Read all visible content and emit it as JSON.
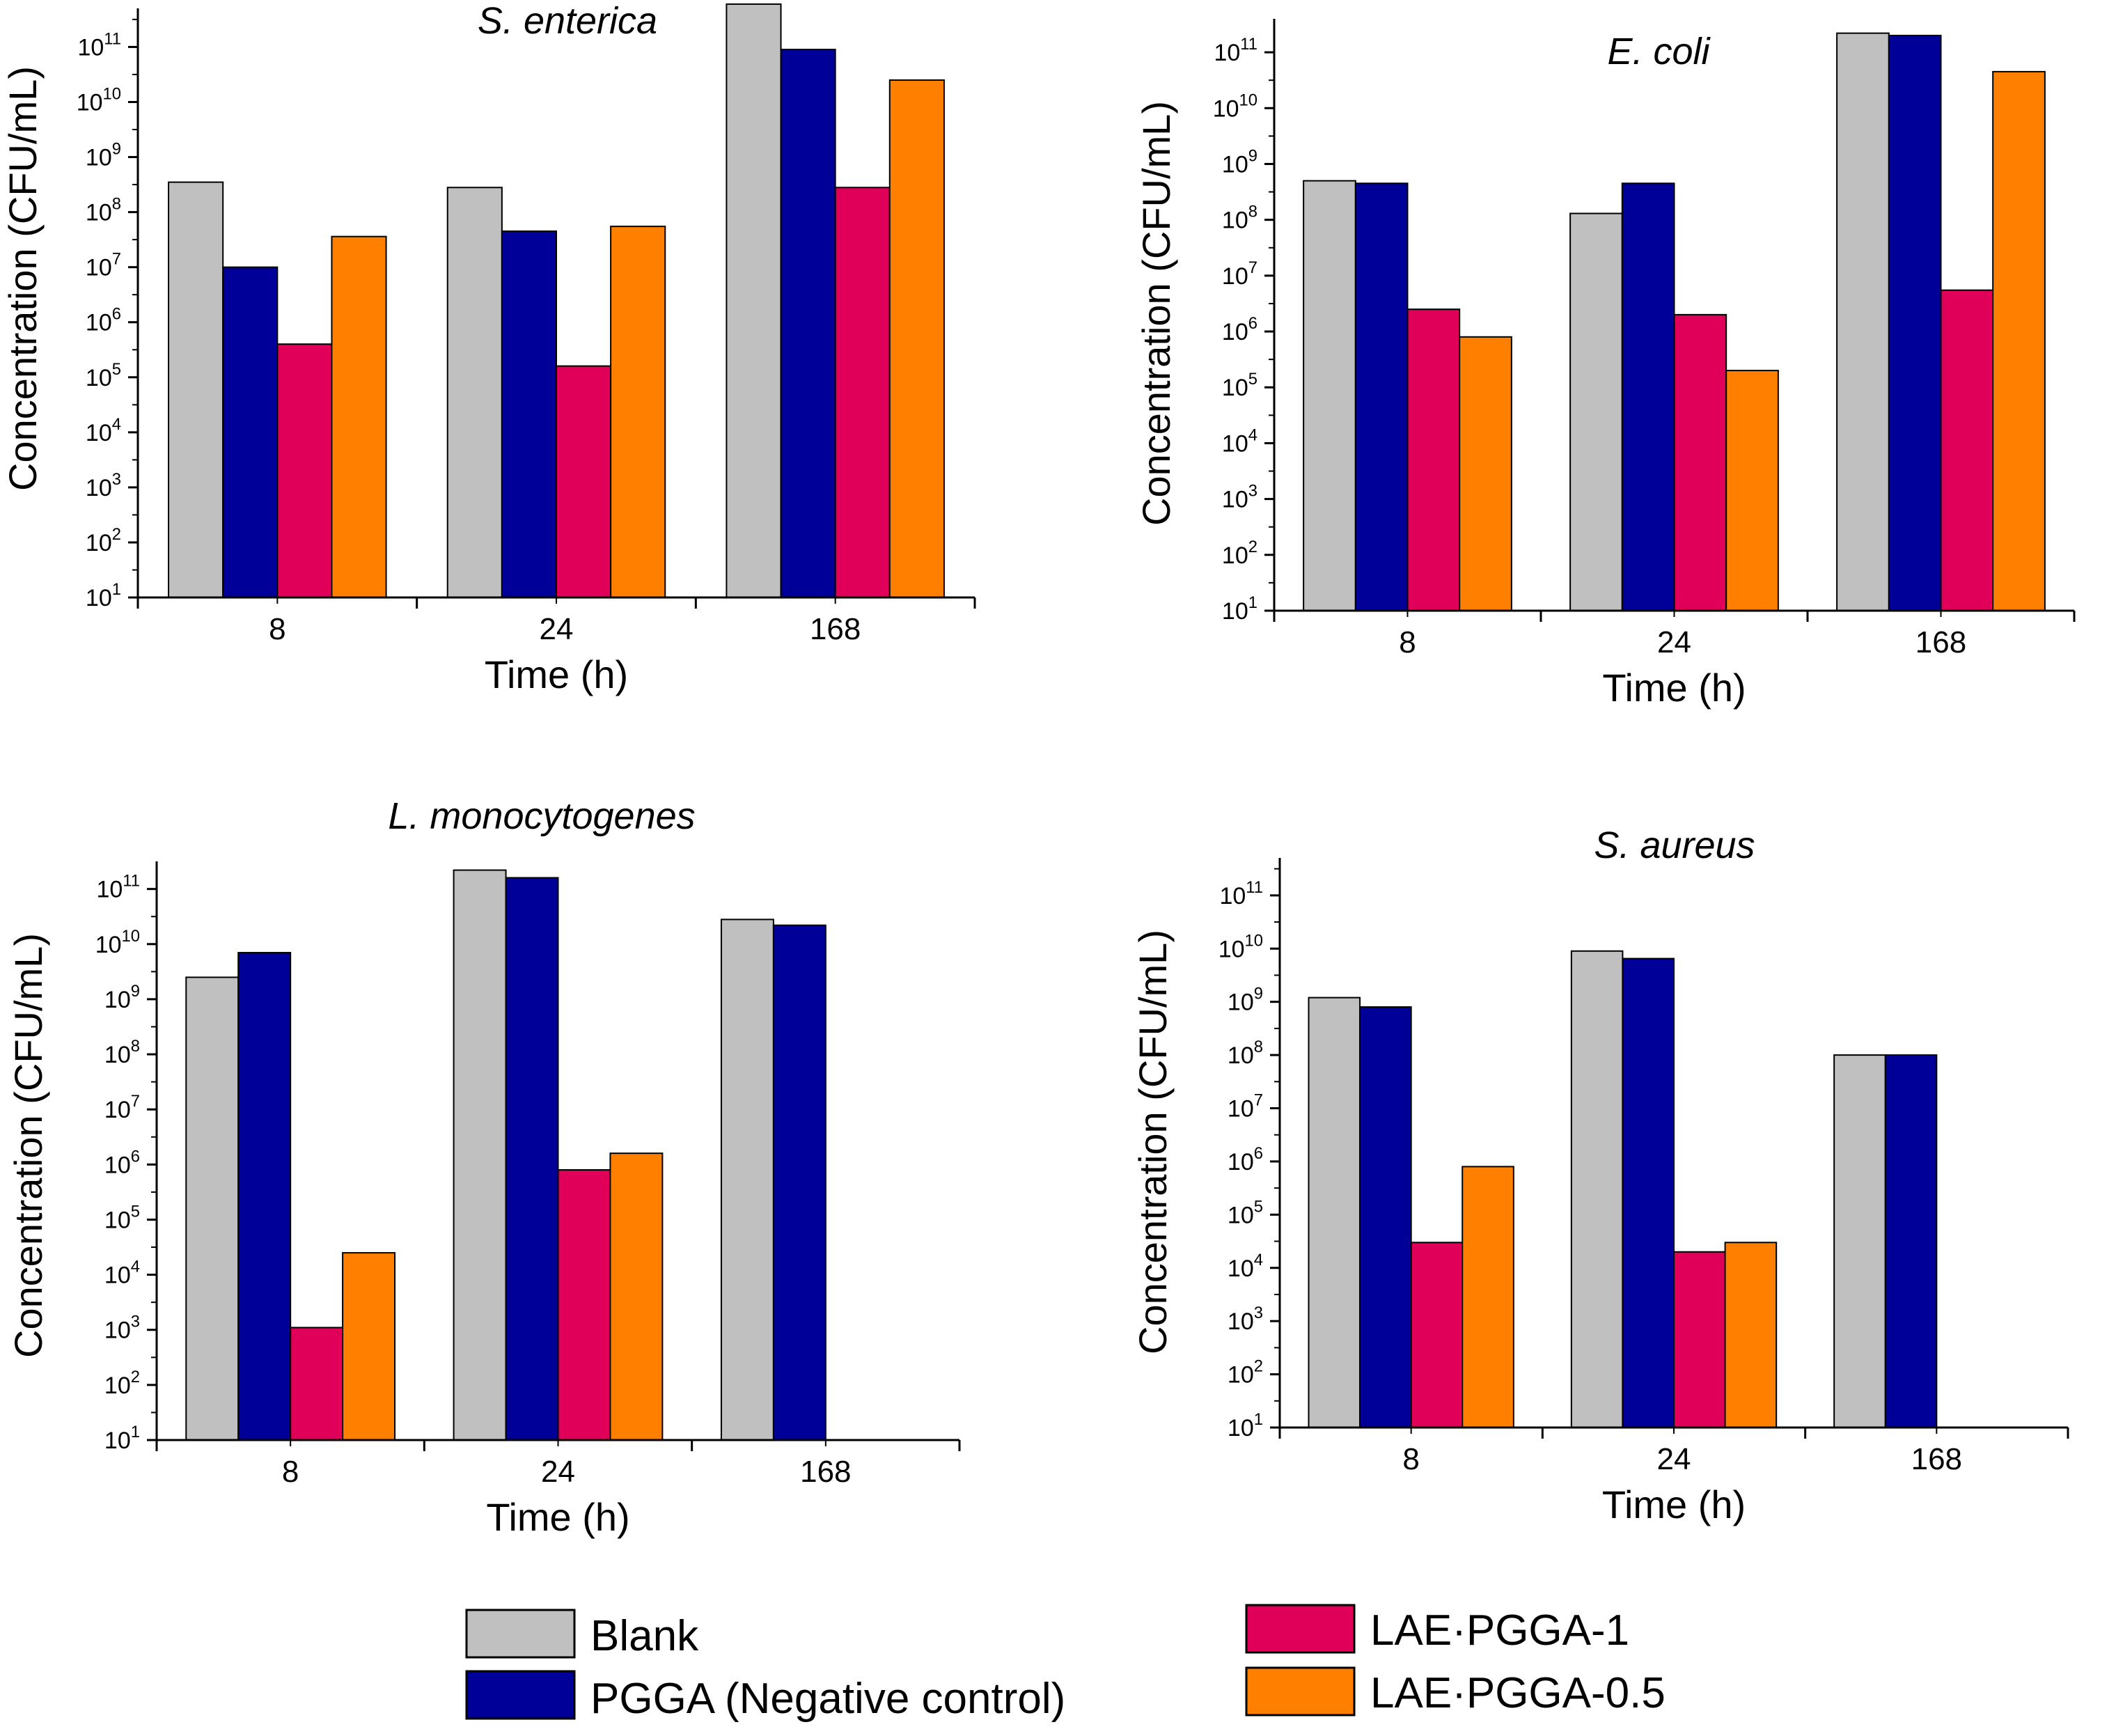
{
  "series": [
    {
      "name": "Blank",
      "color": "#c0c0c0"
    },
    {
      "name": "PGGA (Negative control)",
      "color": "#000099"
    },
    {
      "name": "LAE·PGGA-1",
      "color": "#e0005a"
    },
    {
      "name": "LAE·PGGA-0.5",
      "color": "#ff8000"
    }
  ],
  "chart_data": [
    {
      "type": "bar",
      "title": "S. enterica",
      "xlabel": "Time (h)",
      "ylabel": "Concentration (CFU/mL)",
      "yscale": "log",
      "ylim_exp": [
        1,
        11.6
      ],
      "ytick_exponents": [
        1,
        2,
        3,
        4,
        5,
        6,
        7,
        8,
        9,
        10,
        11
      ],
      "categories": [
        "8",
        "24",
        "168"
      ],
      "series": [
        {
          "name": "Blank",
          "values": [
            350000000.0,
            280000000.0,
            600000000000.0
          ]
        },
        {
          "name": "PGGA (Negative control)",
          "values": [
            10000000.0,
            45000000.0,
            90000000000.0
          ]
        },
        {
          "name": "LAE·PGGA-1",
          "values": [
            400000.0,
            160000.0,
            280000000.0
          ]
        },
        {
          "name": "LAE·PGGA-0.5",
          "values": [
            36000000.0,
            55000000.0,
            25000000000.0
          ]
        }
      ]
    },
    {
      "type": "bar",
      "title": "E. coli",
      "xlabel": "Time (h)",
      "ylabel": "Concentration (CFU/mL)",
      "yscale": "log",
      "ylim_exp": [
        1,
        11.5
      ],
      "ytick_exponents": [
        1,
        2,
        3,
        4,
        5,
        6,
        7,
        8,
        9,
        10,
        11
      ],
      "categories": [
        "8",
        "24",
        "168"
      ],
      "series": [
        {
          "name": "Blank",
          "values": [
            500000000.0,
            130000000.0,
            220000000000.0
          ]
        },
        {
          "name": "PGGA (Negative control)",
          "values": [
            450000000.0,
            450000000.0,
            200000000000.0
          ]
        },
        {
          "name": "LAE·PGGA-1",
          "values": [
            2500000.0,
            2000000.0,
            5500000.0
          ]
        },
        {
          "name": "LAE·PGGA-0.5",
          "values": [
            800000.0,
            200000.0,
            45000000000.0
          ]
        }
      ]
    },
    {
      "type": "bar",
      "title": "L. monocytogenes",
      "xlabel": "Time (h)",
      "ylabel": "Concentration (CFU/mL)",
      "yscale": "log",
      "ylim_exp": [
        1,
        11.4
      ],
      "ytick_exponents": [
        1,
        2,
        3,
        4,
        5,
        6,
        7,
        8,
        9,
        10,
        11
      ],
      "categories": [
        "8",
        "24",
        "168"
      ],
      "series": [
        {
          "name": "Blank",
          "values": [
            2500000000.0,
            220000000000.0,
            28000000000.0
          ]
        },
        {
          "name": "PGGA (Negative control)",
          "values": [
            7000000000.0,
            160000000000.0,
            22000000000.0
          ]
        },
        {
          "name": "LAE·PGGA-1",
          "values": [
            1100.0,
            800000.0,
            null
          ]
        },
        {
          "name": "LAE·PGGA-0.5",
          "values": [
            25000.0,
            1600000.0,
            null
          ]
        }
      ]
    },
    {
      "type": "bar",
      "title": "S. aureus",
      "xlabel": "Time (h)",
      "ylabel": "Concentration (CFU/mL)",
      "yscale": "log",
      "ylim_exp": [
        1,
        11.6
      ],
      "ytick_exponents": [
        1,
        2,
        3,
        4,
        5,
        6,
        7,
        8,
        9,
        10,
        11
      ],
      "categories": [
        "8",
        "24",
        "168"
      ],
      "series": [
        {
          "name": "Blank",
          "values": [
            1200000000.0,
            9000000000.0,
            100000000.0
          ]
        },
        {
          "name": "PGGA (Negative control)",
          "values": [
            800000000.0,
            6500000000.0,
            100000000.0
          ]
        },
        {
          "name": "LAE·PGGA-1",
          "values": [
            30000.0,
            20000.0,
            null
          ]
        },
        {
          "name": "LAE·PGGA-0.5",
          "values": [
            800000.0,
            30000.0,
            null
          ]
        }
      ]
    }
  ]
}
